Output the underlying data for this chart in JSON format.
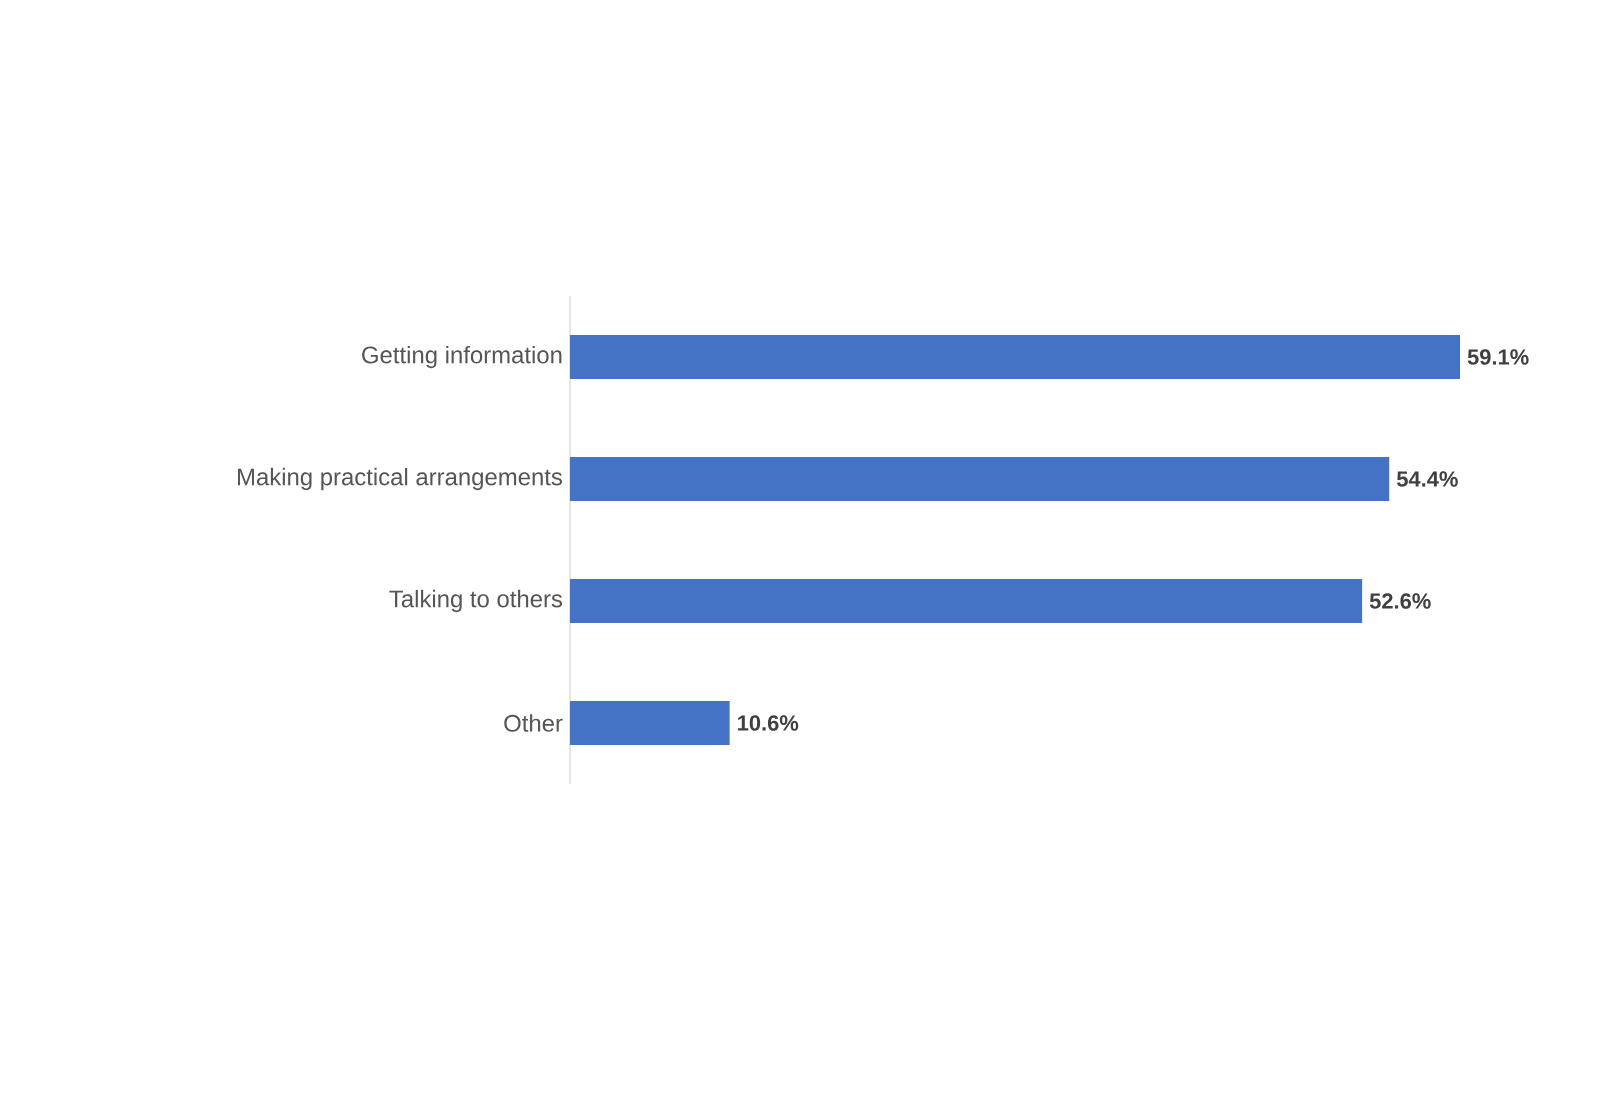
{
  "chart_data": {
    "type": "bar",
    "orientation": "horizontal",
    "categories": [
      "Getting information",
      "Making practical arrangements",
      "Talking to others",
      "Other"
    ],
    "values": [
      59.1,
      54.4,
      52.6,
      10.6
    ],
    "value_labels": [
      "59.1%",
      "54.4%",
      "52.6%",
      "10.6%"
    ],
    "color": "#4472c4"
  }
}
